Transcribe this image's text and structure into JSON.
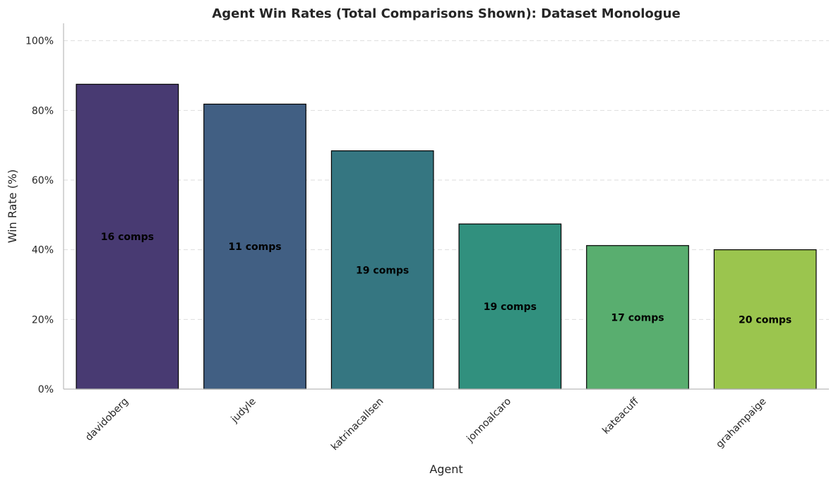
{
  "chart_data": {
    "type": "bar",
    "title": "Agent Win Rates (Total Comparisons Shown): Dataset Monologue",
    "xlabel": "Agent",
    "ylabel": "Win Rate (%)",
    "ylim": [
      0,
      105
    ],
    "yticks": [
      0,
      20,
      40,
      60,
      80,
      100
    ],
    "ytick_labels": [
      "0%",
      "20%",
      "40%",
      "60%",
      "80%",
      "100%"
    ],
    "grid": "y-dashed",
    "categories": [
      "davidoberg",
      "judyle",
      "katrinacallsen",
      "jonnoalcaro",
      "kateacuff",
      "grahampaige"
    ],
    "values": [
      87.5,
      81.8,
      68.4,
      47.4,
      41.2,
      40.0
    ],
    "bar_labels": [
      "16 comps",
      "11 comps",
      "19 comps",
      "19 comps",
      "17 comps",
      "20 comps"
    ],
    "colors": [
      "#483a72",
      "#415f83",
      "#357681",
      "#31907e",
      "#59ae6f",
      "#9bc54e"
    ]
  }
}
